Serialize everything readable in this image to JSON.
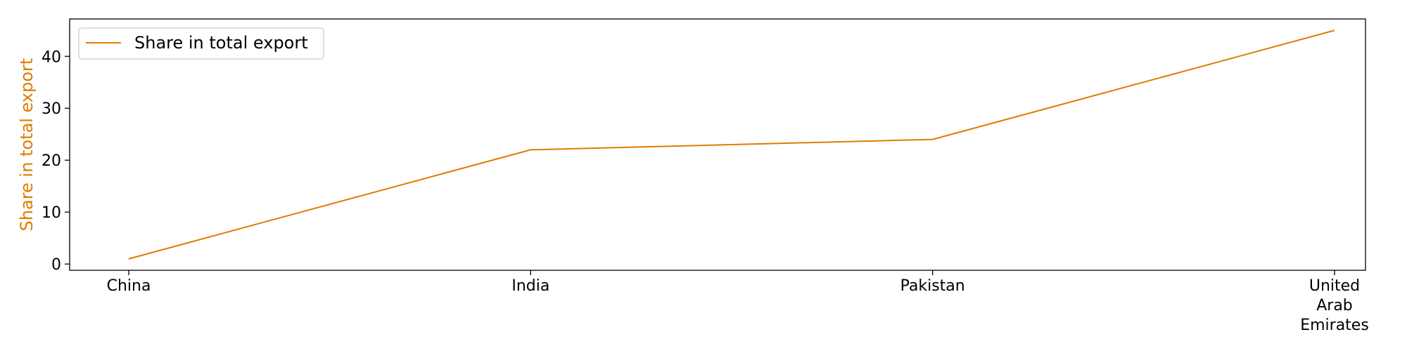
{
  "chart_data": {
    "type": "line",
    "categories": [
      "China",
      "India",
      "Pakistan",
      "United Arab Emirates"
    ],
    "category_lines": [
      [
        "China"
      ],
      [
        "India"
      ],
      [
        "Pakistan"
      ],
      [
        "United",
        "Arab",
        "Emirates"
      ]
    ],
    "series": [
      {
        "name": "Share in total export",
        "values": [
          1,
          22,
          24,
          45
        ],
        "color": "#e07b00"
      }
    ],
    "ylabel": "Share in total export",
    "ylabel_color": "#e07b00",
    "yticks": [
      0,
      10,
      20,
      30,
      40
    ],
    "ylim": [
      -1.2,
      47.2
    ],
    "grid": false,
    "legend_position": "top-left"
  }
}
